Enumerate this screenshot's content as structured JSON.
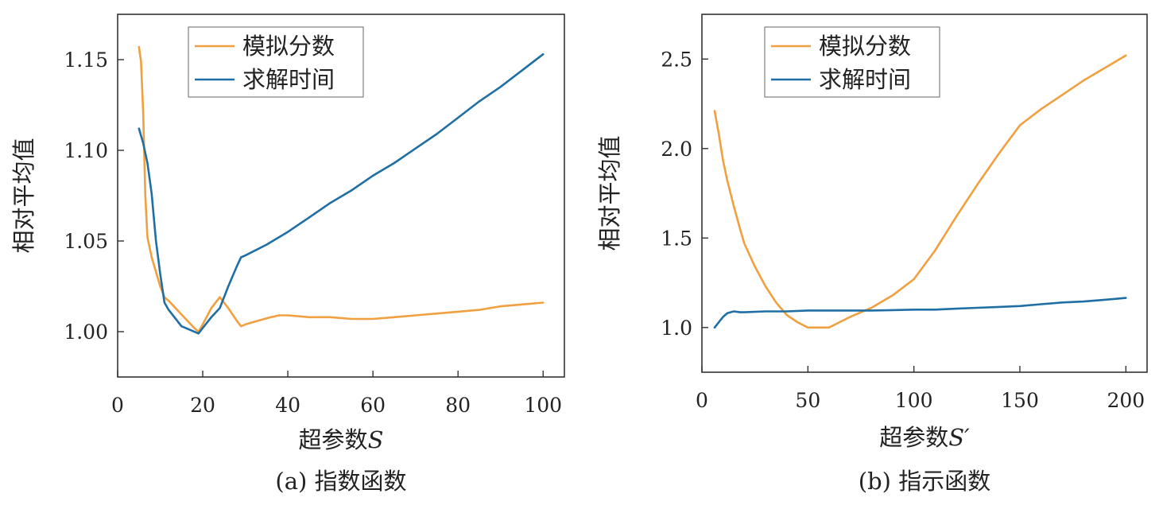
{
  "colors": {
    "score": "#F0A040",
    "time": "#1F6FA4",
    "axis": "#333333"
  },
  "chart_data": [
    {
      "type": "line",
      "caption": "(a) 指数函数",
      "xlabel": "超参数",
      "xlabel_var": "S",
      "ylabel": "相对平均值",
      "xlim": [
        0,
        105
      ],
      "ylim": [
        0.975,
        1.175
      ],
      "xticks": [
        0,
        20,
        40,
        60,
        80,
        100
      ],
      "xtick_labels": [
        "0",
        "20",
        "40",
        "60",
        "80",
        "100"
      ],
      "yticks": [
        1.0,
        1.05,
        1.1,
        1.15
      ],
      "ytick_labels": [
        "1.00",
        "1.05",
        "1.10",
        "1.15"
      ],
      "legend_position": "top-center",
      "series": [
        {
          "name": "模拟分数",
          "color_key": "score",
          "x": [
            5,
            5.5,
            6,
            6.5,
            7,
            8,
            9,
            10,
            11,
            12,
            14,
            16,
            18,
            19,
            20,
            22,
            24,
            26,
            28,
            29,
            30,
            33,
            36,
            38,
            40,
            45,
            50,
            55,
            60,
            65,
            70,
            75,
            80,
            85,
            90,
            95,
            100
          ],
          "y": [
            1.157,
            1.149,
            1.121,
            1.075,
            1.052,
            1.041,
            1.033,
            1.025,
            1.019,
            1.017,
            1.012,
            1.007,
            1.002,
            1.0,
            1.004,
            1.013,
            1.019,
            1.013,
            1.006,
            1.003,
            1.004,
            1.006,
            1.008,
            1.009,
            1.009,
            1.008,
            1.008,
            1.007,
            1.007,
            1.008,
            1.009,
            1.01,
            1.011,
            1.012,
            1.014,
            1.015,
            1.016
          ]
        },
        {
          "name": "求解时间",
          "color_key": "time",
          "x": [
            5,
            6,
            7,
            8,
            9,
            10,
            11,
            12,
            14,
            15,
            17,
            19,
            20,
            22,
            24,
            26,
            28,
            29,
            30,
            35,
            40,
            45,
            50,
            55,
            60,
            65,
            70,
            75,
            80,
            85,
            90,
            95,
            100
          ],
          "y": [
            1.112,
            1.104,
            1.093,
            1.076,
            1.05,
            1.032,
            1.016,
            1.012,
            1.006,
            1.003,
            1.001,
            0.999,
            1.002,
            1.008,
            1.013,
            1.025,
            1.036,
            1.041,
            1.042,
            1.048,
            1.055,
            1.063,
            1.071,
            1.078,
            1.086,
            1.093,
            1.101,
            1.109,
            1.118,
            1.127,
            1.135,
            1.144,
            1.153
          ]
        }
      ]
    },
    {
      "type": "line",
      "caption": "(b) 指示函数",
      "xlabel": "超参数",
      "xlabel_var": "S′",
      "ylabel": "相对平均值",
      "xlim": [
        0,
        210
      ],
      "ylim": [
        0.75,
        2.75
      ],
      "xticks": [
        0,
        50,
        100,
        150,
        200
      ],
      "xtick_labels": [
        "0",
        "50",
        "100",
        "150",
        "200"
      ],
      "yticks": [
        1.0,
        1.5,
        2.0,
        2.5
      ],
      "ytick_labels": [
        "1.0",
        "1.5",
        "2.0",
        "2.5"
      ],
      "legend_position": "top-center",
      "series": [
        {
          "name": "模拟分数",
          "color_key": "score",
          "x": [
            6,
            8,
            10,
            12,
            15,
            18,
            20,
            25,
            30,
            35,
            40,
            45,
            50,
            55,
            60,
            65,
            70,
            80,
            90,
            100,
            110,
            120,
            130,
            140,
            150,
            160,
            170,
            180,
            190,
            200
          ],
          "y": [
            2.21,
            2.08,
            1.93,
            1.82,
            1.68,
            1.55,
            1.47,
            1.34,
            1.23,
            1.14,
            1.07,
            1.03,
            1.0,
            1.0,
            1.0,
            1.03,
            1.06,
            1.11,
            1.18,
            1.27,
            1.43,
            1.62,
            1.8,
            1.97,
            2.13,
            2.22,
            2.3,
            2.38,
            2.45,
            2.52
          ]
        },
        {
          "name": "求解时间",
          "color_key": "time",
          "x": [
            6,
            8,
            10,
            12,
            15,
            18,
            20,
            30,
            40,
            50,
            60,
            70,
            80,
            90,
            100,
            110,
            120,
            130,
            140,
            150,
            160,
            170,
            180,
            190,
            200
          ],
          "y": [
            1.0,
            1.03,
            1.06,
            1.08,
            1.09,
            1.085,
            1.085,
            1.09,
            1.09,
            1.095,
            1.095,
            1.095,
            1.095,
            1.097,
            1.1,
            1.1,
            1.105,
            1.11,
            1.115,
            1.12,
            1.13,
            1.14,
            1.145,
            1.155,
            1.165
          ]
        }
      ]
    }
  ]
}
